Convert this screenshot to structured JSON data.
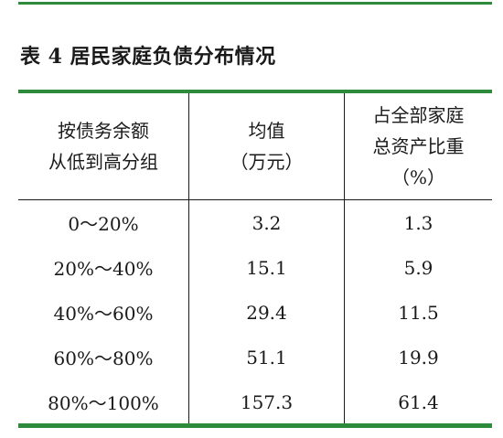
{
  "title": "表 4  居民家庭负债分布情况",
  "table": {
    "headers": [
      [
        "按债务余额",
        "从低到高分组"
      ],
      [
        "均值",
        "（万元）"
      ],
      [
        "占全部家庭",
        "总资产比重",
        "（%）"
      ]
    ],
    "rows": [
      {
        "group": "0～20%",
        "mean": "3.2",
        "share": "1.3"
      },
      {
        "group": "20%～40%",
        "mean": "15.1",
        "share": "5.9"
      },
      {
        "group": "40%～60%",
        "mean": "29.4",
        "share": "11.5"
      },
      {
        "group": "60%～80%",
        "mean": "51.1",
        "share": "19.9"
      },
      {
        "group": "80%～100%",
        "mean": "157.3",
        "share": "61.4"
      }
    ]
  },
  "colors": {
    "rule": "#2e8b3c",
    "text": "#1a1a1a"
  }
}
